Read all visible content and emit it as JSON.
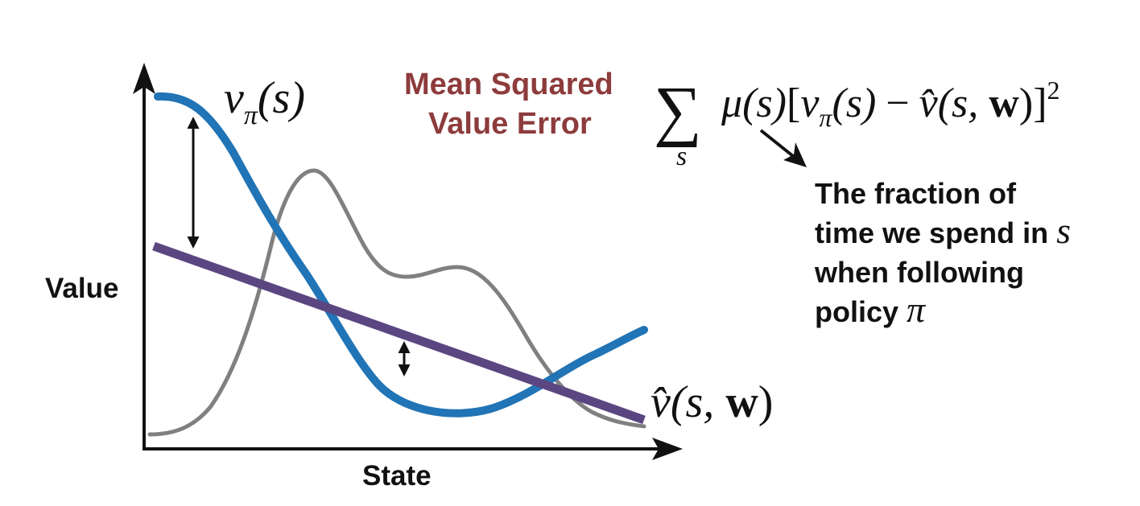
{
  "axes": {
    "x_label": "State",
    "y_label": "Value"
  },
  "curves": {
    "true_value": {
      "var": "v",
      "subscript": "π",
      "args": "(s)",
      "color": "#2174b5"
    },
    "approx_value": {
      "hat_var": "v̂",
      "args_open": "(s, ",
      "weight": "w",
      "args_close": ")",
      "color": "#5b4681"
    },
    "state_distribution": {
      "color": "#808080"
    }
  },
  "title": {
    "line1": "Mean Squared",
    "line2": "Value Error",
    "color": "#8d3b3c"
  },
  "formula": {
    "sigma": "∑",
    "sigma_sub": "s",
    "mu": "μ",
    "mu_args": "(s)",
    "bracket_open": "[",
    "v": "v",
    "v_sub": "π",
    "v_args": "(s)",
    "minus": "−",
    "vhat": "v̂",
    "vhat_args_open": "(s, ",
    "weight": "w",
    "vhat_args_close": ")",
    "bracket_close": "]",
    "power": "2"
  },
  "annotation": {
    "line1": "The fraction of",
    "line2_text": "time we spend in ",
    "line2_var": "s",
    "line3": "when following",
    "line4_text": "policy ",
    "line4_var": "π"
  }
}
